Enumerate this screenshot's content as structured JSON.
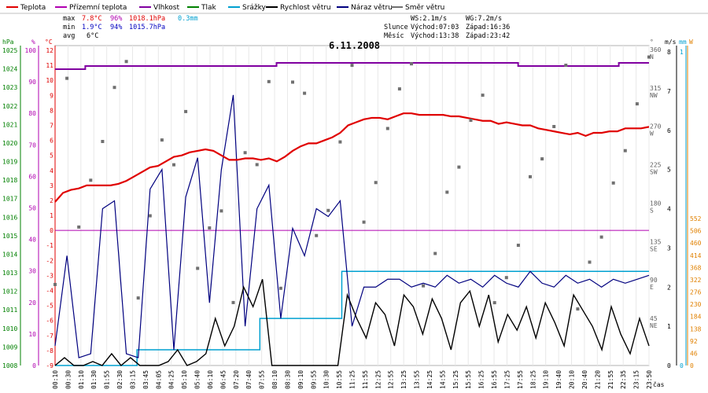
{
  "legend": [
    {
      "label": "Teplota",
      "color": "#e00000"
    },
    {
      "label": "Přízemní teplota",
      "color": "#b000b0"
    },
    {
      "label": "Vlhkost",
      "color": "#8000a0"
    },
    {
      "label": "Tlak",
      "color": "#008000"
    },
    {
      "label": "Srážky",
      "color": "#00a0d0"
    },
    {
      "label": "Rychlost větru",
      "color": "#000000"
    },
    {
      "label": "Náraz větru",
      "color": "#00007f"
    },
    {
      "label": "Směr větru",
      "color": "#707070"
    }
  ],
  "stats": {
    "max": {
      "label": "max",
      "temp": "7.8°C",
      "hum": "96%",
      "press": "1018.1hPa",
      "rain": "0.3mm"
    },
    "min": {
      "label": "min",
      "temp": "1.9°C",
      "hum": "94%",
      "press": "1015.7hPa"
    },
    "avg": {
      "label": "avg",
      "temp": "6°C"
    }
  },
  "wind_info": {
    "ws": "WS:2.1m/s",
    "wg": "WG:7.2m/s"
  },
  "sun_moon": {
    "sun_label": "Slunce",
    "sun_rise": "Východ:07:03",
    "sun_set": "Západ:16:36",
    "moon_label": "Měsíc",
    "moon_rise": "Východ:13:38",
    "moon_set": "Západ:23:42"
  },
  "date_title": "6.11.2008",
  "axes": {
    "hpa_label": "hPa",
    "pct_label": "%",
    "degc_label": "°C",
    "deg_label": "°",
    "ms_label": "m/s",
    "mm_label": "mm",
    "w_label": "W",
    "time_label": "čas",
    "hpa_ticks": [
      "1025",
      "1024",
      "1023",
      "1022",
      "1021",
      "1020",
      "1019",
      "1018",
      "1017",
      "1016",
      "1015",
      "1014",
      "1013",
      "1012",
      "1011",
      "1010",
      "1009",
      "1008"
    ],
    "pct_ticks": [
      "100",
      "90",
      "80",
      "70",
      "60",
      "50",
      "40",
      "30",
      "20",
      "10",
      "0"
    ],
    "degc_ticks": [
      "12",
      "11",
      "10",
      "9",
      "8",
      "7",
      "6",
      "5",
      "4",
      "3",
      "2",
      "1",
      "0",
      "-1",
      "-2",
      "-3",
      "-4",
      "-5",
      "-6",
      "-7",
      "-8",
      "-9"
    ],
    "dir_ticks": [
      "360 N",
      "315 NW",
      "270 W",
      "225 SW",
      "180 S",
      "135 SE",
      "90 E",
      "45 NE"
    ],
    "ms_ticks": [
      "8",
      "7",
      "6",
      "5",
      "4",
      "3",
      "2",
      "1",
      "0"
    ],
    "mm_ticks": [
      "1",
      "0"
    ],
    "w_ticks": [
      "552",
      "506",
      "460",
      "414",
      "368",
      "322",
      "276",
      "230",
      "184",
      "138",
      "92",
      "46",
      "0"
    ],
    "x_labels": [
      "00:10",
      "00:30",
      "01:10",
      "01:30",
      "01:55",
      "02:30",
      "03:15",
      "03:45",
      "04:05",
      "04:25",
      "05:10",
      "05:40",
      "06:10",
      "06:45",
      "07:20",
      "07:40",
      "07:55",
      "08:10",
      "08:30",
      "09:10",
      "09:55",
      "10:30",
      "10:55",
      "11:25",
      "11:55",
      "12:25",
      "12:55",
      "13:25",
      "13:55",
      "14:25",
      "14:55",
      "15:25",
      "15:55",
      "16:25",
      "16:55",
      "17:25",
      "17:55",
      "18:25",
      "19:10",
      "19:40",
      "20:10",
      "20:40",
      "21:20",
      "21:55",
      "22:35",
      "23:15",
      "23:50"
    ]
  },
  "chart_data": {
    "type": "line",
    "title": "6.11.2008",
    "xlabel": "čas",
    "temp_range_degC": [
      -9,
      12
    ],
    "humidity_range_pct": [
      0,
      100
    ],
    "pressure_range_hPa": [
      1008,
      1025
    ],
    "wind_range_ms": [
      0,
      8
    ],
    "direction_range_deg": [
      0,
      360
    ],
    "rain_range_mm": [
      0,
      1
    ],
    "series_temperature": [
      1.9,
      2.5,
      2.7,
      2.8,
      3.0,
      3.0,
      3.0,
      3.0,
      3.1,
      3.3,
      3.6,
      3.9,
      4.2,
      4.3,
      4.6,
      4.9,
      5.0,
      5.2,
      5.3,
      5.4,
      5.3,
      5.0,
      4.7,
      4.7,
      4.8,
      4.8,
      4.7,
      4.8,
      4.6,
      4.9,
      5.3,
      5.6,
      5.8,
      5.8,
      6.0,
      6.2,
      6.5,
      7.0,
      7.2,
      7.4,
      7.5,
      7.5,
      7.4,
      7.6,
      7.8,
      7.8,
      7.7,
      7.7,
      7.7,
      7.7,
      7.6,
      7.6,
      7.5,
      7.4,
      7.3,
      7.3,
      7.1,
      7.2,
      7.1,
      7.0,
      7.0,
      6.8,
      6.7,
      6.6,
      6.5,
      6.4,
      6.5,
      6.3,
      6.5,
      6.5,
      6.6,
      6.6,
      6.8,
      6.8,
      6.8,
      6.9
    ],
    "series_humidity": [
      94,
      94,
      94,
      95,
      95,
      95,
      95,
      95,
      95,
      95,
      95,
      95,
      95,
      95,
      95,
      95,
      95,
      95,
      95,
      95,
      95,
      95,
      96,
      96,
      96,
      96,
      96,
      96,
      96,
      96,
      96,
      96,
      96,
      96,
      96,
      96,
      96,
      96,
      96,
      96,
      96,
      96,
      96,
      96,
      96,
      96,
      95,
      95,
      95,
      95,
      95,
      95,
      95,
      95,
      95,
      95,
      96,
      96,
      96,
      96
    ],
    "series_ground_temp": [
      0,
      0,
      0,
      0,
      0,
      0,
      0,
      0,
      0,
      0
    ],
    "series_rain_mm": [
      0,
      0,
      0,
      0,
      0.05,
      0.05,
      0.05,
      0.05,
      0.05,
      0.05,
      0.15,
      0.15,
      0.15,
      0.15,
      0.3,
      0.3,
      0.3,
      0.3,
      0.3,
      0.3,
      0.3,
      0.3,
      0.3,
      0.3,
      0.3,
      0.3,
      0.3,
      0.3,
      0.3,
      0.3
    ],
    "series_wind_speed": [
      0,
      0.2,
      0,
      0,
      0.1,
      0,
      0.3,
      0,
      0.2,
      0,
      0,
      0,
      0.1,
      0.4,
      0,
      0.1,
      0.3,
      1.2,
      0.5,
      1.0,
      2.0,
      1.5,
      2.2,
      0,
      0,
      0,
      0,
      0,
      0,
      0,
      0,
      1.8,
      1.2,
      0.7,
      1.6,
      1.3,
      0.5,
      1.8,
      1.5,
      0.8,
      1.7,
      1.2,
      0.4,
      1.6,
      1.9,
      1.0,
      1.8,
      0.6,
      1.3,
      0.9,
      1.5,
      0.7,
      1.6,
      1.1,
      0.5,
      1.8,
      1.4,
      1.0,
      0.4,
      1.5,
      0.8,
      0.3,
      1.2,
      0.5
    ],
    "series_wind_gust": [
      0.5,
      2.8,
      0.2,
      0.3,
      4.0,
      4.2,
      0.3,
      0.2,
      4.5,
      5.0,
      0.4,
      4.3,
      5.3,
      1.6,
      5.0,
      6.9,
      1.0,
      4.0,
      4.6,
      1.2,
      3.5,
      2.8,
      4.0,
      3.8,
      4.2,
      1.0,
      2.0,
      2.0,
      2.2,
      2.2,
      2.0,
      2.1,
      2.0,
      2.3,
      2.1,
      2.2,
      2.0,
      2.3,
      2.1,
      2.0,
      2.4,
      2.1,
      2.0,
      2.3,
      2.1,
      2.2,
      2.0,
      2.2,
      2.1,
      2.2,
      2.3
    ]
  }
}
